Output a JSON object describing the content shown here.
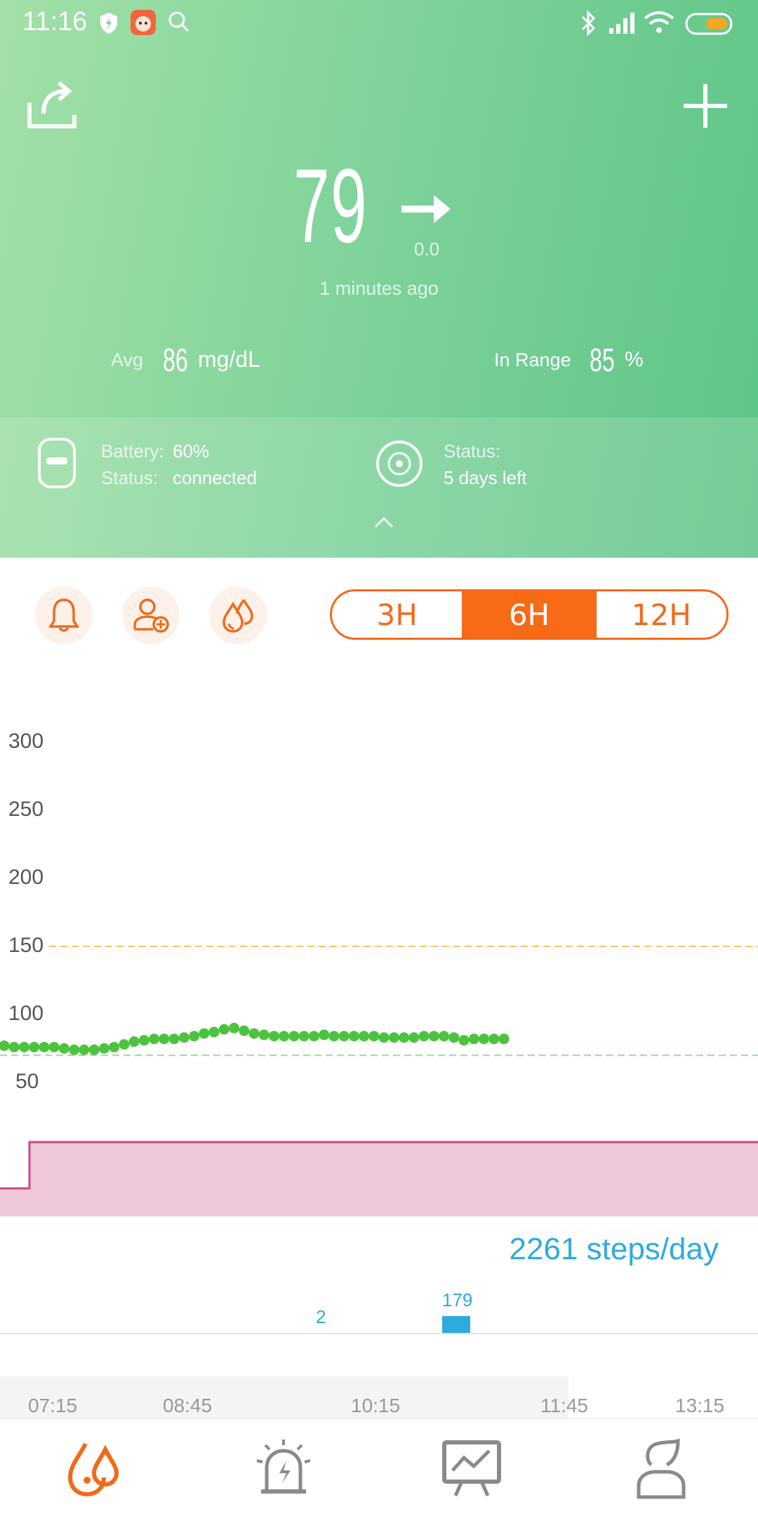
{
  "status_bar": {
    "time": "11:16"
  },
  "reading": {
    "value": "79",
    "trend_delta": "0.0",
    "time_ago": "1 minutes ago",
    "trend_icon": "arrow-right-icon"
  },
  "stats": {
    "avg_label": "Avg",
    "avg_value": "86",
    "avg_unit": "mg/dL",
    "range_label": "In Range",
    "range_value": "85",
    "range_unit": "%"
  },
  "device": {
    "battery_label": "Battery:",
    "battery_value": "60%",
    "status_label": "Status:",
    "status_value": "connected",
    "sensor_status_label": "Status:",
    "sensor_status_value": "5 days left"
  },
  "range_tabs": [
    {
      "label": "3H",
      "active": false
    },
    {
      "label": "6H",
      "active": true
    },
    {
      "label": "12H",
      "active": false
    }
  ],
  "chart_data": {
    "type": "scatter",
    "y_ticks": [
      "300",
      "250",
      "200",
      "150",
      "100",
      "50"
    ],
    "ylim": [
      50,
      300
    ],
    "high_threshold": 150,
    "low_threshold": 70,
    "series": [
      {
        "values": [
          77,
          76,
          76,
          76,
          76,
          76,
          75,
          74,
          74,
          74,
          75,
          76,
          78,
          80,
          81,
          82,
          82,
          82,
          83,
          84,
          86,
          87,
          89,
          90,
          88,
          86,
          85,
          84,
          84,
          84,
          84,
          84,
          85,
          84,
          84,
          84,
          84,
          84,
          83,
          83,
          83,
          83,
          84,
          84,
          84,
          83,
          81,
          82,
          82,
          82,
          82
        ]
      }
    ],
    "x_ticks": [
      "07:15",
      "08:45",
      "10:15",
      "11:45",
      "13:15"
    ],
    "colors": {
      "points": "#4cc33f",
      "high_line": "#f5c46a",
      "low_line": "#9ed89c",
      "band": "#eec8d8",
      "band_line": "#d0457f",
      "steps": "#30a9df"
    }
  },
  "steps": {
    "summary": "2261 steps/day",
    "bars": [
      {
        "label": "2",
        "value": 2
      },
      {
        "label": "179",
        "value": 179
      }
    ]
  },
  "nav": [
    {
      "icon": "glucose-drops-icon",
      "active": true
    },
    {
      "icon": "alarm-icon",
      "active": false
    },
    {
      "icon": "trend-board-icon",
      "active": false
    },
    {
      "icon": "profile-icon",
      "active": false
    }
  ]
}
